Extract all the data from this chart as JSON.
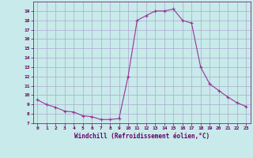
{
  "x": [
    0,
    1,
    2,
    3,
    4,
    5,
    6,
    7,
    8,
    9,
    10,
    11,
    12,
    13,
    14,
    15,
    16,
    17,
    18,
    19,
    20,
    21,
    22,
    23
  ],
  "y": [
    9.5,
    9.0,
    8.7,
    8.3,
    8.2,
    7.8,
    7.7,
    7.4,
    7.4,
    7.5,
    12.0,
    18.0,
    18.5,
    19.0,
    19.0,
    19.2,
    18.0,
    17.7,
    13.0,
    11.2,
    10.5,
    9.8,
    9.2,
    8.8
  ],
  "line_color": "#993399",
  "marker": "+",
  "marker_size": 3,
  "bg_color": "#c8eaea",
  "grid_color": "#aaaacc",
  "xlabel": "Windchill (Refroidissement éolien,°C)",
  "xlabel_color": "#660066",
  "tick_color": "#660066",
  "xlim": [
    -0.5,
    23.5
  ],
  "ylim": [
    7,
    20
  ],
  "yticks": [
    7,
    8,
    9,
    10,
    11,
    12,
    13,
    14,
    15,
    16,
    17,
    18,
    19
  ],
  "xticks": [
    0,
    1,
    2,
    3,
    4,
    5,
    6,
    7,
    8,
    9,
    10,
    11,
    12,
    13,
    14,
    15,
    16,
    17,
    18,
    19,
    20,
    21,
    22,
    23
  ]
}
